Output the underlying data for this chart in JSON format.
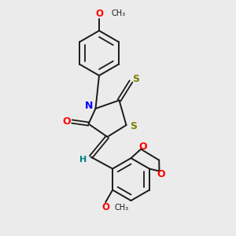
{
  "bg_color": "#ebebeb",
  "bond_color": "#1a1a1a",
  "N_color": "#0000ff",
  "O_color": "#ff0000",
  "S_color": "#808000",
  "H_color": "#008080",
  "figsize": [
    3.0,
    3.0
  ],
  "dpi": 100,
  "xlim": [
    0,
    10
  ],
  "ylim": [
    0,
    10
  ]
}
